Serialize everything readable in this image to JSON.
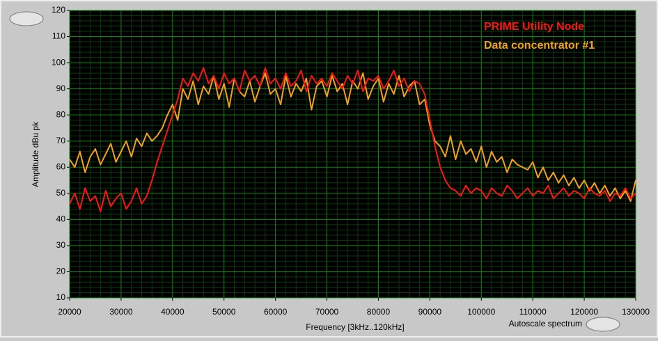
{
  "chart_data": {
    "type": "line",
    "xlabel": "Frequency [3kHz..120kHz]",
    "ylabel": "Amplitude dBu pk",
    "button": "Autoscale spectrum",
    "grid": true,
    "minor_grid_divisions": 5,
    "legend": "top-right",
    "xlim": [
      20000,
      130000
    ],
    "xticks": [
      20000,
      30000,
      40000,
      50000,
      60000,
      70000,
      80000,
      90000,
      100000,
      110000,
      120000,
      130000
    ],
    "ylim": [
      10,
      120
    ],
    "yticks": [
      10,
      20,
      30,
      40,
      50,
      60,
      70,
      80,
      90,
      100,
      110,
      120
    ],
    "x": [
      20000,
      21000,
      22000,
      23000,
      24000,
      25000,
      26000,
      27000,
      28000,
      29000,
      30000,
      31000,
      32000,
      33000,
      34000,
      35000,
      36000,
      37000,
      38000,
      39000,
      40000,
      41000,
      42000,
      43000,
      44000,
      45000,
      46000,
      47000,
      48000,
      49000,
      50000,
      51000,
      52000,
      53000,
      54000,
      55000,
      56000,
      57000,
      58000,
      59000,
      60000,
      61000,
      62000,
      63000,
      64000,
      65000,
      66000,
      67000,
      68000,
      69000,
      70000,
      71000,
      72000,
      73000,
      74000,
      75000,
      76000,
      77000,
      78000,
      79000,
      80000,
      81000,
      82000,
      83000,
      84000,
      85000,
      86000,
      87000,
      88000,
      89000,
      90000,
      91000,
      92000,
      93000,
      94000,
      95000,
      96000,
      97000,
      98000,
      99000,
      100000,
      101000,
      102000,
      103000,
      104000,
      105000,
      106000,
      107000,
      108000,
      109000,
      110000,
      111000,
      112000,
      113000,
      114000,
      115000,
      116000,
      117000,
      118000,
      119000,
      120000,
      121000,
      122000,
      123000,
      124000,
      125000,
      126000,
      127000,
      128000,
      129000,
      130000
    ],
    "series": [
      {
        "name": "Data concentrator #1",
        "color": "#f5a11e",
        "values": [
          63,
          60,
          66,
          58,
          64,
          67,
          61,
          65,
          69,
          62,
          66,
          70,
          64,
          71,
          68,
          73,
          70,
          72,
          75,
          80,
          84,
          78,
          90,
          86,
          93,
          84,
          91,
          88,
          95,
          86,
          92,
          83,
          94,
          89,
          87,
          93,
          85,
          91,
          96,
          88,
          90,
          84,
          95,
          87,
          92,
          89,
          94,
          82,
          91,
          93,
          87,
          95,
          89,
          92,
          84,
          93,
          90,
          96,
          86,
          91,
          94,
          85,
          92,
          88,
          95,
          87,
          91,
          93,
          84,
          86,
          76,
          70,
          68,
          64,
          72,
          63,
          70,
          65,
          67,
          62,
          68,
          60,
          66,
          62,
          64,
          58,
          63,
          61,
          60,
          59,
          62,
          56,
          60,
          55,
          58,
          54,
          57,
          53,
          56,
          52,
          55,
          51,
          54,
          50,
          53,
          49,
          52,
          48,
          51,
          47,
          55
        ]
      },
      {
        "name": "PRIME Utility Node",
        "color": "#ff1414",
        "values": [
          46,
          50,
          44,
          52,
          47,
          49,
          43,
          51,
          45,
          48,
          50,
          44,
          47,
          52,
          46,
          49,
          55,
          62,
          68,
          74,
          80,
          86,
          94,
          91,
          96,
          93,
          98,
          92,
          95,
          90,
          96,
          92,
          94,
          89,
          97,
          93,
          95,
          91,
          98,
          92,
          94,
          90,
          96,
          91,
          93,
          97,
          89,
          95,
          92,
          94,
          91,
          96,
          93,
          90,
          95,
          92,
          97,
          89,
          94,
          93,
          95,
          90,
          93,
          97,
          91,
          94,
          89,
          93,
          92,
          88,
          78,
          68,
          60,
          55,
          52,
          51,
          49,
          53,
          50,
          52,
          51,
          48,
          52,
          50,
          49,
          53,
          51,
          48,
          50,
          52,
          49,
          51,
          50,
          53,
          48,
          50,
          52,
          49,
          51,
          50,
          48,
          52,
          50,
          49,
          51,
          47,
          50,
          49,
          52,
          48,
          50
        ]
      }
    ]
  }
}
